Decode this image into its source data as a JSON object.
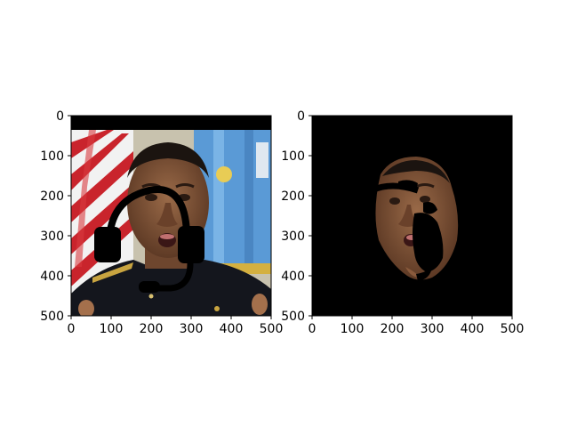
{
  "chart_data": [
    {
      "type": "image",
      "title": "",
      "xlabel": "",
      "ylabel": "",
      "xlim": [
        0,
        500
      ],
      "ylim": [
        500,
        0
      ],
      "xticks": [
        0,
        100,
        200,
        300,
        400,
        500
      ],
      "yticks": [
        0,
        100,
        200,
        300,
        400,
        500
      ],
      "content": "photo of a man in a dark uniform in front of flags, with a black headset drawn over the head; top rows (y 0–35) are black"
    },
    {
      "type": "image",
      "title": "",
      "xlabel": "",
      "ylabel": "",
      "xlim": [
        0,
        500
      ],
      "ylim": [
        500,
        0
      ],
      "xticks": [
        0,
        100,
        200,
        300,
        400,
        500
      ],
      "yticks": [
        0,
        100,
        200,
        300,
        400,
        500
      ],
      "content": "segmentation mask result: black background with only the face region visible, headset partially overlapping"
    }
  ],
  "colors": {
    "background": "#ffffff",
    "axis": "#000000",
    "mask": "#000000",
    "skin": "#8a5a3c",
    "skin_dark": "#5e3a25",
    "uniform": "#14161d",
    "flag_red": "#c9242c",
    "flag_white": "#f2f2f2",
    "flag_blue": "#5a9ad6",
    "wall": "#c8c2ae",
    "headset": "#000000"
  }
}
